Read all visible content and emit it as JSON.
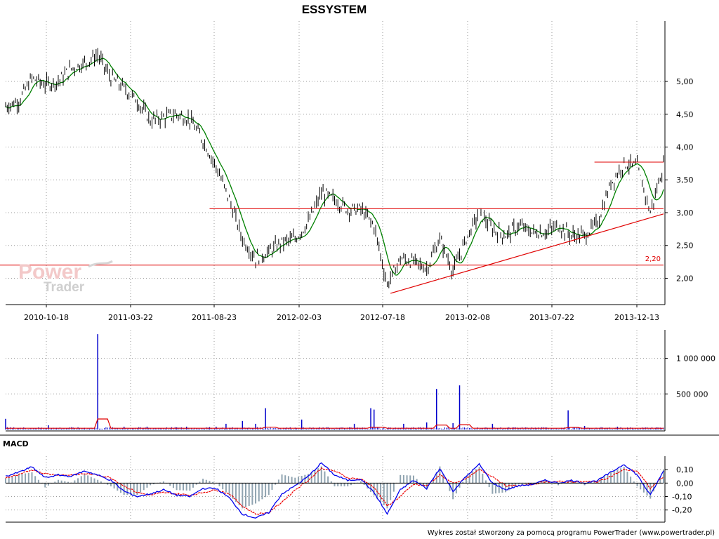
{
  "title": "ESSYSTEM",
  "footer": "Wykres został stworzony za pomocą programu PowerTrader (www.powertrader.pl)",
  "watermark": {
    "line1": "Power",
    "line2": "Trader"
  },
  "macd_label": "MACD",
  "colors": {
    "price_bar": "#000000",
    "price_ma": "#008000",
    "trend": "#e00000",
    "volume_bar": "#0000cc",
    "volume_ma": "#e00000",
    "macd_line": "#0000ee",
    "macd_signal": "#ee0000",
    "macd_hist": "#8fa3b0",
    "grid": "#9a9a9a"
  },
  "chart_data": [
    {
      "type": "line",
      "name": "price",
      "title": "ESSYSTEM",
      "x_ticks": [
        "2010-10-18",
        "2011-03-22",
        "2011-08-23",
        "2012-02-03",
        "2012-07-18",
        "2013-02-08",
        "2013-07-22",
        "2013-12-13"
      ],
      "y_ticks": [
        "5,00",
        "4,50",
        "4,00",
        "3,50",
        "3,00",
        "2,50",
        "2,00"
      ],
      "ylim": [
        1.62,
        5.92
      ],
      "xlim": [
        0,
        200
      ],
      "x": [
        0,
        4,
        8,
        12,
        16,
        20,
        24,
        28,
        32,
        36,
        40,
        44,
        48,
        52,
        56,
        60,
        64,
        68,
        72,
        76,
        80,
        84,
        88,
        92,
        96,
        100,
        104,
        108,
        112,
        116,
        120,
        124,
        128,
        132,
        136,
        140,
        144,
        148,
        152,
        156,
        160,
        164,
        168,
        172,
        176,
        180,
        184,
        188,
        192,
        196,
        200
      ],
      "close": [
        4.62,
        4.7,
        5.05,
        4.95,
        5.0,
        5.2,
        5.28,
        5.4,
        5.05,
        4.9,
        4.7,
        4.4,
        4.45,
        4.5,
        4.42,
        4.1,
        3.7,
        3.2,
        2.6,
        2.3,
        2.4,
        2.55,
        2.6,
        2.85,
        3.3,
        3.2,
        3.05,
        3.05,
        2.8,
        1.9,
        2.3,
        2.25,
        2.15,
        2.6,
        2.1,
        2.6,
        3.0,
        2.75,
        2.65,
        2.8,
        2.7,
        2.7,
        2.8,
        2.65,
        2.65,
        2.85,
        3.45,
        3.75,
        3.7,
        3.0,
        3.72
      ],
      "horizontal_lines": [
        {
          "label": "2,20",
          "value": 2.2
        },
        {
          "label": "",
          "value": 3.06
        },
        {
          "label": "",
          "value": 3.77
        }
      ],
      "trend_line": {
        "from": [
          117,
          1.77
        ],
        "to": [
          200,
          2.98
        ]
      }
    },
    {
      "type": "bar",
      "name": "volume",
      "y_ticks": [
        "1 000 000",
        "500 000"
      ],
      "ylim": [
        0,
        1400000
      ],
      "spikes": [
        [
          0,
          150000
        ],
        [
          13,
          60000
        ],
        [
          28,
          1340000
        ],
        [
          36,
          40000
        ],
        [
          43,
          40000
        ],
        [
          52,
          30000
        ],
        [
          55,
          40000
        ],
        [
          62,
          30000
        ],
        [
          64,
          40000
        ],
        [
          67,
          80000
        ],
        [
          72,
          120000
        ],
        [
          76,
          80000
        ],
        [
          79,
          300000
        ],
        [
          90,
          140000
        ],
        [
          106,
          80000
        ],
        [
          111,
          300000
        ],
        [
          112,
          280000
        ],
        [
          121,
          80000
        ],
        [
          128,
          100000
        ],
        [
          131,
          570000
        ],
        [
          136,
          90000
        ],
        [
          138,
          620000
        ],
        [
          148,
          80000
        ],
        [
          171,
          270000
        ],
        [
          176,
          50000
        ],
        [
          186,
          40000
        ],
        [
          198,
          30000
        ]
      ]
    },
    {
      "type": "line",
      "name": "macd",
      "y_ticks": [
        "0,10",
        "0,00",
        "-0,10",
        "-0,20"
      ],
      "ylim": [
        -0.28,
        0.2
      ],
      "x": [
        0,
        4,
        8,
        12,
        16,
        20,
        24,
        28,
        32,
        36,
        40,
        44,
        48,
        52,
        56,
        60,
        64,
        68,
        72,
        76,
        80,
        84,
        88,
        92,
        96,
        100,
        104,
        108,
        112,
        116,
        120,
        124,
        128,
        132,
        136,
        140,
        144,
        148,
        152,
        156,
        160,
        164,
        168,
        172,
        176,
        180,
        184,
        188,
        192,
        196,
        200
      ],
      "macd": [
        0.05,
        0.08,
        0.12,
        0.04,
        0.06,
        0.05,
        0.09,
        0.06,
        0.02,
        -0.06,
        -0.1,
        -0.08,
        -0.05,
        -0.09,
        -0.1,
        -0.04,
        -0.04,
        -0.11,
        -0.23,
        -0.26,
        -0.22,
        -0.08,
        -0.02,
        0.05,
        0.15,
        0.06,
        0.02,
        0.03,
        -0.07,
        -0.23,
        -0.05,
        0.02,
        -0.04,
        0.11,
        -0.06,
        0.05,
        0.14,
        0.0,
        -0.05,
        -0.02,
        -0.01,
        0.02,
        0.0,
        0.02,
        0.0,
        0.02,
        0.08,
        0.14,
        0.06,
        -0.09,
        0.09
      ],
      "signal": [
        0.04,
        0.06,
        0.1,
        0.07,
        0.06,
        0.06,
        0.07,
        0.06,
        0.04,
        -0.02,
        -0.07,
        -0.09,
        -0.07,
        -0.08,
        -0.09,
        -0.07,
        -0.05,
        -0.08,
        -0.17,
        -0.23,
        -0.22,
        -0.14,
        -0.05,
        0.02,
        0.11,
        0.09,
        0.04,
        0.03,
        -0.03,
        -0.17,
        -0.1,
        -0.01,
        -0.02,
        0.06,
        0.0,
        0.03,
        0.1,
        0.05,
        -0.02,
        -0.02,
        -0.01,
        0.01,
        0.01,
        0.01,
        0.01,
        0.01,
        0.05,
        0.1,
        0.09,
        -0.04,
        0.05
      ]
    }
  ]
}
